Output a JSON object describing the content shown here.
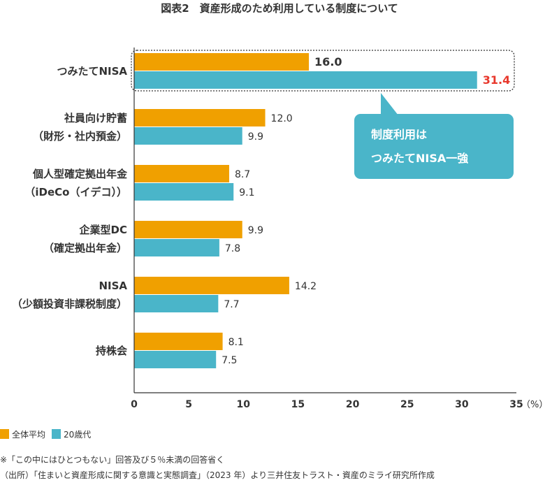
{
  "chart_data": {
    "type": "bar",
    "orientation": "horizontal",
    "title": "図表2　資産形成のため利用している制度について",
    "categories": [
      [
        "つみたてNISA"
      ],
      [
        "社員向け貯蓄",
        "（財形・社内預金）"
      ],
      [
        "個人型確定拠出年金",
        "（iDeCo（イデコ））"
      ],
      [
        "企業型DC",
        "（確定拠出年金）"
      ],
      [
        "NISA",
        "（少額投資非課税制度）"
      ],
      [
        "持株会"
      ]
    ],
    "series": [
      {
        "name": "全体平均",
        "color": "#f0a000",
        "values": [
          16.0,
          12.0,
          8.7,
          9.9,
          14.2,
          8.1
        ]
      },
      {
        "name": "20歳代",
        "color": "#4ab5c9",
        "values": [
          31.4,
          9.9,
          9.1,
          7.8,
          7.7,
          7.5
        ]
      }
    ],
    "xlim": [
      0,
      35
    ],
    "xticks": [
      0,
      5,
      10,
      15,
      20,
      25,
      30,
      35
    ],
    "xunit": "（%）",
    "grid": false,
    "legend_position": "bottom-left",
    "highlight_color": "#e8382c",
    "annotation": {
      "lines": [
        "制度利用は",
        "つみたてNISA一強"
      ],
      "color": "#4ab5c9"
    }
  },
  "notes": [
    "※「この中にはひとつもない」回答及び５％未満の回答省く",
    "（出所）「住まいと資産形成に関する意識と実態調査」（2023 年）より三井住友トラスト・資産のミライ研究所作成"
  ]
}
